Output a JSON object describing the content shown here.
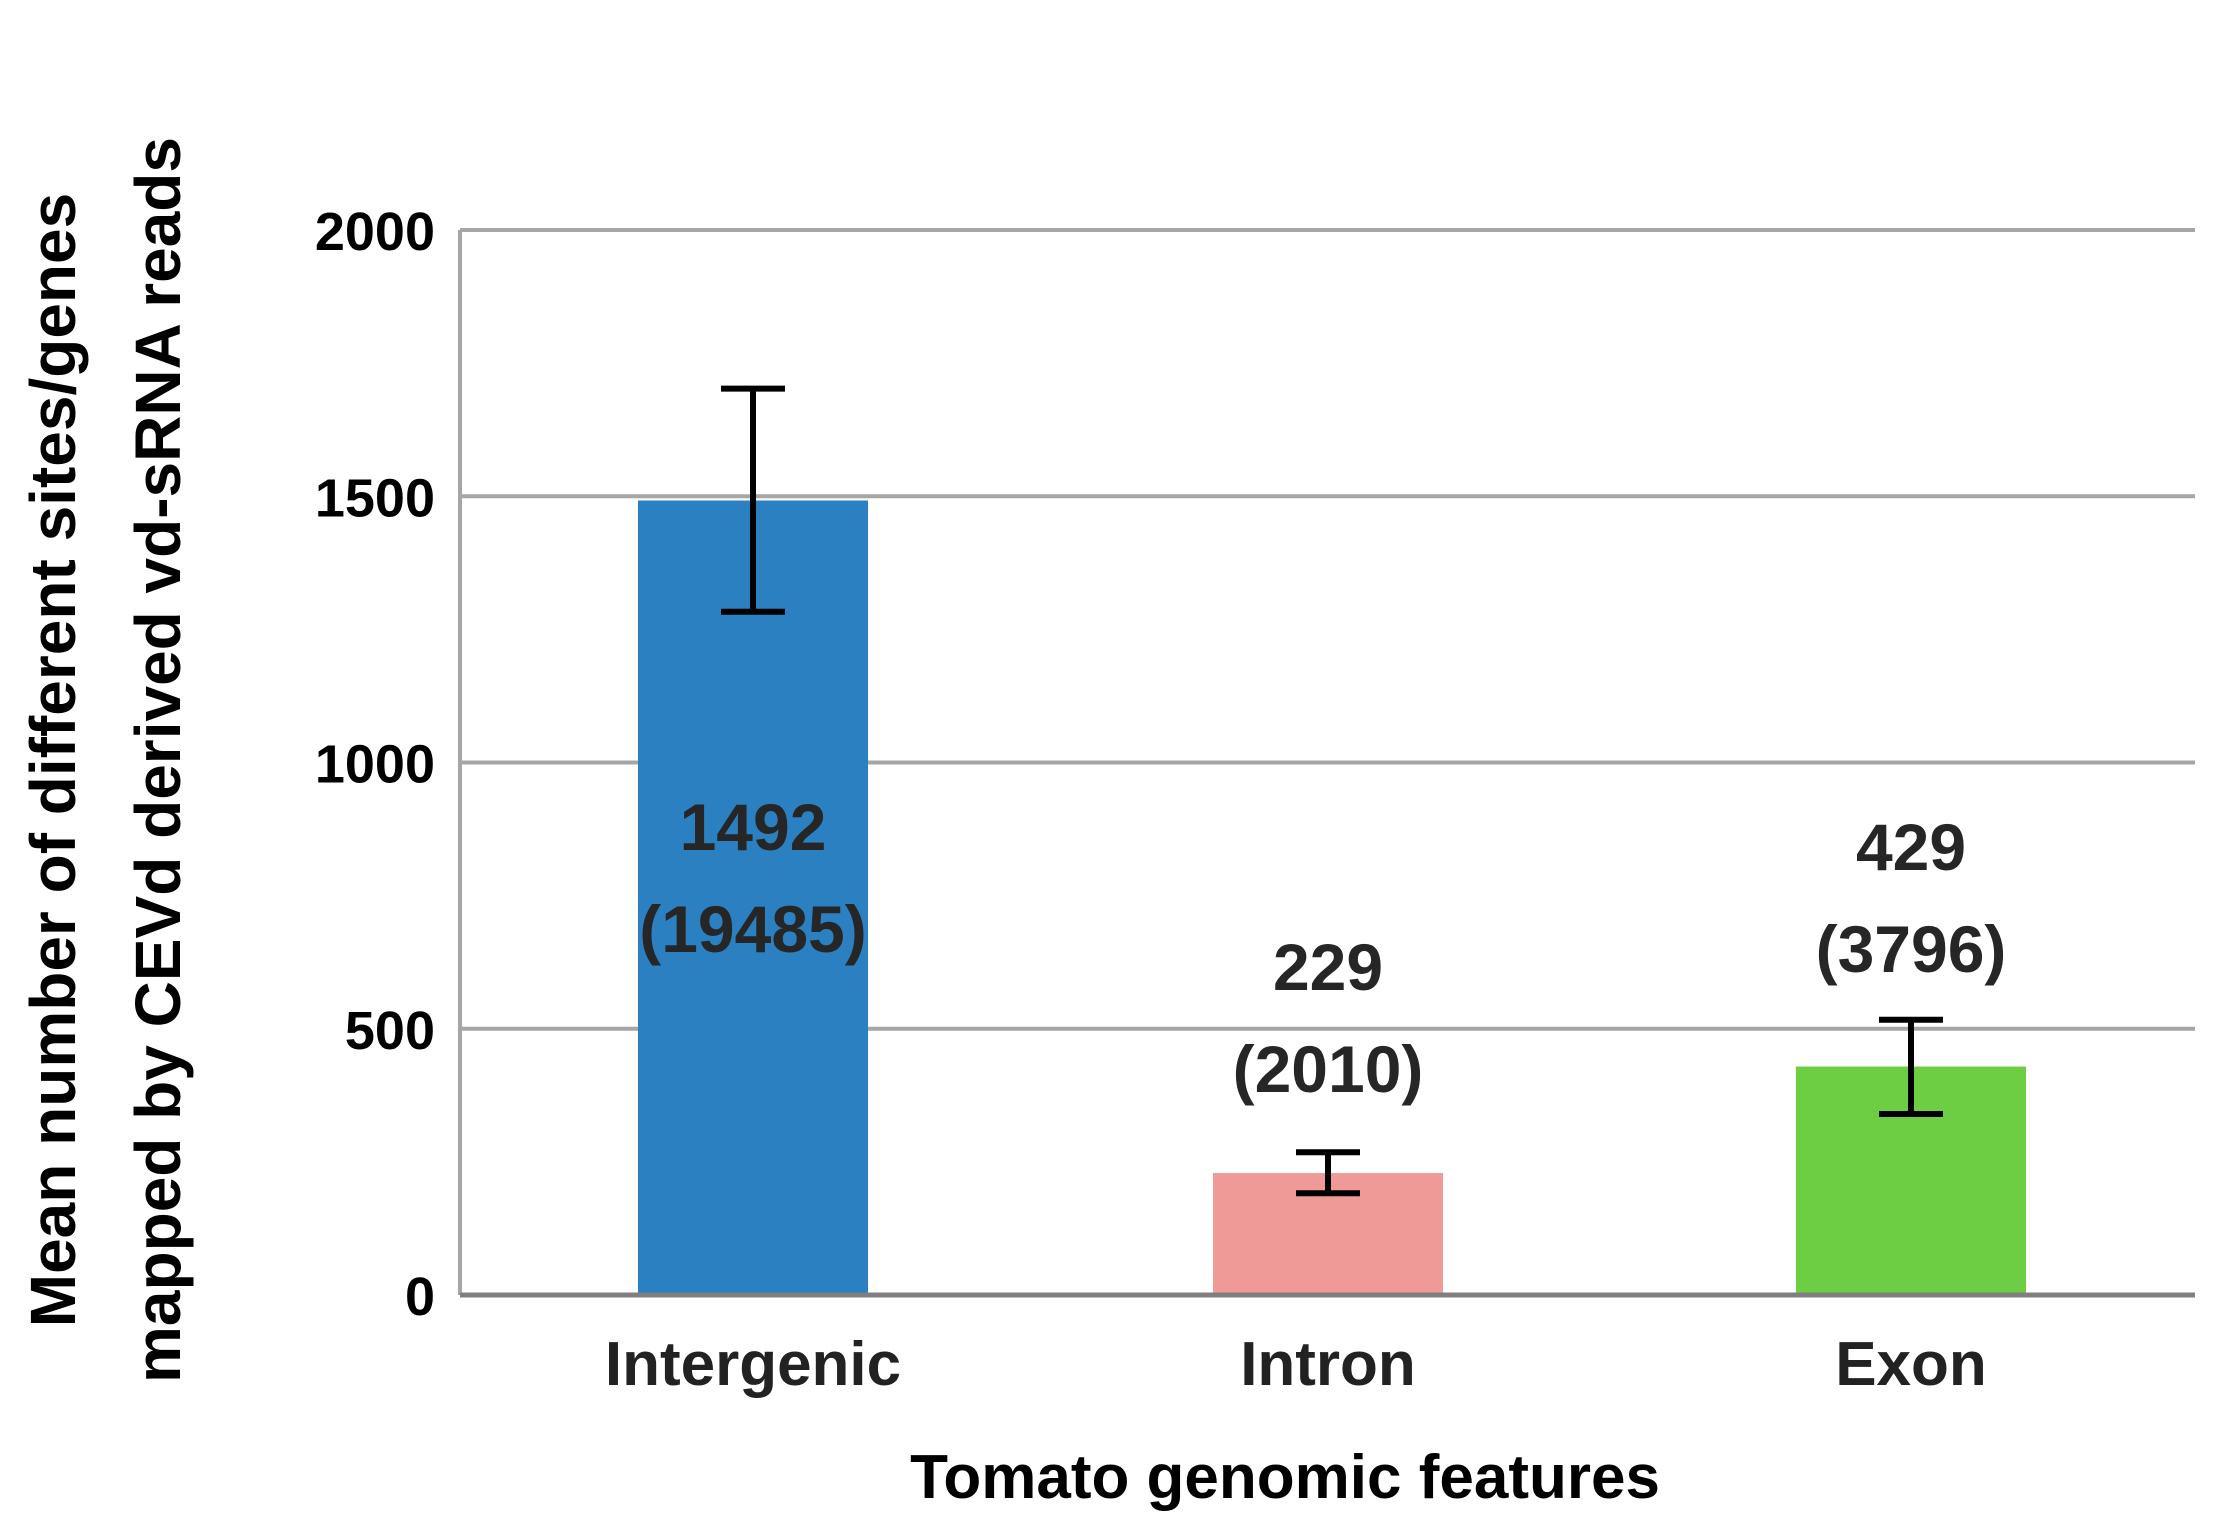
{
  "chart_data": {
    "type": "bar",
    "title": "",
    "xlabel": "Tomato genomic features",
    "ylabel_lines": [
      "Mean number of different sites/genes",
      "mapped by CEVd derived vd-sRNA reads"
    ],
    "categories": [
      "Intergenic",
      "Intron",
      "Exon"
    ],
    "values": [
      1492,
      229,
      429
    ],
    "error_low": [
      1283,
      191,
      340
    ],
    "error_high": [
      1702,
      268,
      517
    ],
    "bar_labels": [
      [
        "1492",
        "(19485)"
      ],
      [
        "229",
        "(2010)"
      ],
      [
        "429",
        "(3796)"
      ]
    ],
    "colors": [
      "#2a80c0",
      "#ef9a96",
      "#6dce44"
    ],
    "ylim": [
      0,
      2000
    ],
    "yticks": [
      0,
      500,
      1000,
      1500,
      2000
    ],
    "grid": true,
    "legend": "none"
  }
}
